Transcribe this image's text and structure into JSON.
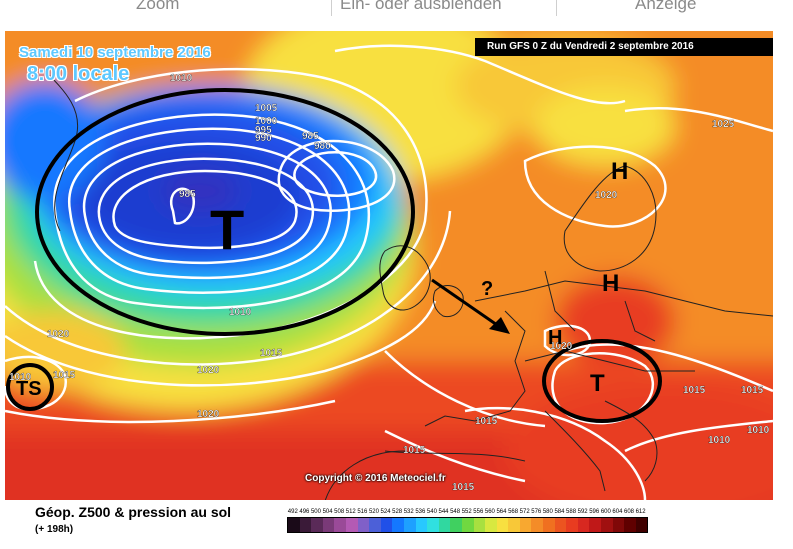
{
  "toolbar": {
    "items": [
      "Zoom",
      "Ein- oder ausblenden",
      "Anzeige"
    ]
  },
  "map": {
    "date_label": "Samedi 10 septembre 2016",
    "time_label": "8:00 locale",
    "run_label": "Run GFS 0 Z du Vendredi 2 septembre 2016",
    "copyright": "Copyright © 2016 Meteociel.fr",
    "annotations": {
      "low_main": "T",
      "low_south": "T",
      "tropical_storm": "TS",
      "high_north": "H",
      "high_central": "H",
      "high_west": "H",
      "question": "?"
    },
    "isobar_labels": {
      "p1010_nw": "1010",
      "p1005": "1005",
      "p1000": "1000",
      "p995": "995",
      "p990": "990",
      "p985_a": "985",
      "p980": "980",
      "p985_b": "985",
      "p1010_mid": "1010",
      "p1015_mid": "1015",
      "p1020_w": "1020",
      "p1015_ts": "1015",
      "p1010_ts": "1010",
      "p1020_sw": "1020",
      "p1020_ssw": "1020",
      "p1025": "1025",
      "p1020_scand": "1020",
      "p1020_alps": "1020",
      "p1015_balk": "1015",
      "p1015_e": "1015",
      "p1015_med": "1015",
      "p1015_sw": "1015",
      "p1015_bot": "1015",
      "p1010_se": "1010",
      "p1010_e": "1010"
    }
  },
  "legend": {
    "title": "Géop. Z500 & pression au sol",
    "subtitle": "(+ 198h)",
    "scale_labels": [
      "492",
      "496",
      "500",
      "504",
      "508",
      "512",
      "516",
      "520",
      "524",
      "528",
      "532",
      "536",
      "540",
      "544",
      "548",
      "552",
      "556",
      "560",
      "564",
      "568",
      "572",
      "576",
      "580",
      "584",
      "588",
      "592",
      "596",
      "600",
      "604",
      "608",
      "612"
    ],
    "scale_colors": [
      "#1a0a18",
      "#3a1a38",
      "#5a2a58",
      "#7a3a78",
      "#9a4a98",
      "#b45ab4",
      "#8060c8",
      "#4c60d8",
      "#2050e8",
      "#1478ff",
      "#1ea0ff",
      "#28c8ff",
      "#30e0e0",
      "#30d8a0",
      "#40d060",
      "#70d840",
      "#a8e040",
      "#d8e840",
      "#f8e040",
      "#f8c838",
      "#f8a830",
      "#f48c28",
      "#f07020",
      "#ec5420",
      "#e83c20",
      "#d82820",
      "#c01818",
      "#a01010",
      "#800808",
      "#600000",
      "#400000"
    ]
  }
}
